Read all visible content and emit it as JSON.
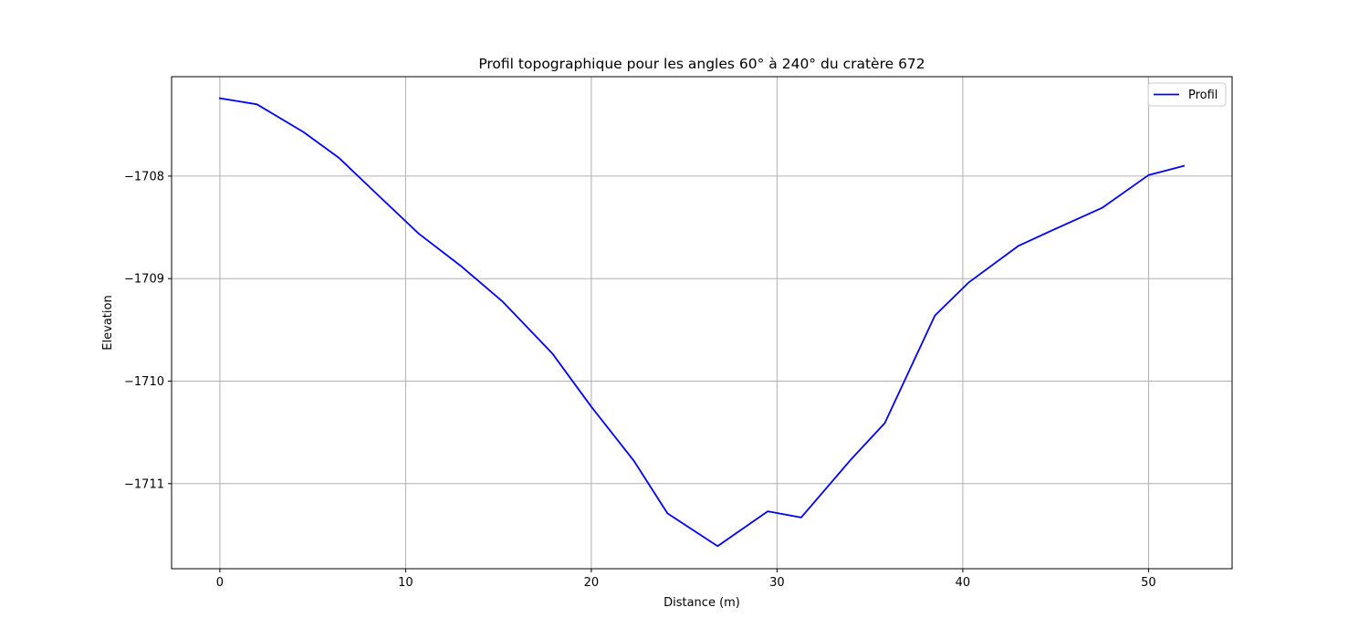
{
  "chart_data": {
    "type": "line",
    "title": "Profil topographique pour les angles 60° à 240° du cratère 672",
    "xlabel": "Distance (m)",
    "ylabel": "Elevation",
    "xlim": [
      -2.6,
      54.5
    ],
    "ylim": [
      -1711.83,
      -1707.03
    ],
    "x_ticks": [
      0,
      10,
      20,
      30,
      40,
      50
    ],
    "y_ticks": [
      -1708,
      -1709,
      -1710,
      -1711
    ],
    "x_tick_labels": [
      "0",
      "10",
      "20",
      "30",
      "40",
      "50"
    ],
    "y_tick_labels": [
      "−1708",
      "−1709",
      "−1710",
      "−1711"
    ],
    "grid": true,
    "legend_position": "top-right",
    "series": [
      {
        "name": "Profil",
        "color": "#0000ff",
        "x": [
          0,
          2.0,
          4.5,
          6.4,
          8.6,
          10.7,
          13.0,
          15.2,
          17.9,
          20.0,
          22.3,
          24.1,
          26.8,
          29.5,
          31.3,
          34.0,
          35.8,
          38.5,
          40.3,
          43.0,
          44.8,
          47.5,
          50.0,
          51.9
        ],
        "y": [
          -1707.24,
          -1707.3,
          -1707.57,
          -1707.82,
          -1708.2,
          -1708.56,
          -1708.88,
          -1709.22,
          -1709.73,
          -1710.25,
          -1710.78,
          -1711.29,
          -1711.61,
          -1711.27,
          -1711.33,
          -1710.76,
          -1710.41,
          -1709.36,
          -1709.04,
          -1708.68,
          -1708.53,
          -1708.31,
          -1707.99,
          -1707.9
        ]
      }
    ]
  }
}
